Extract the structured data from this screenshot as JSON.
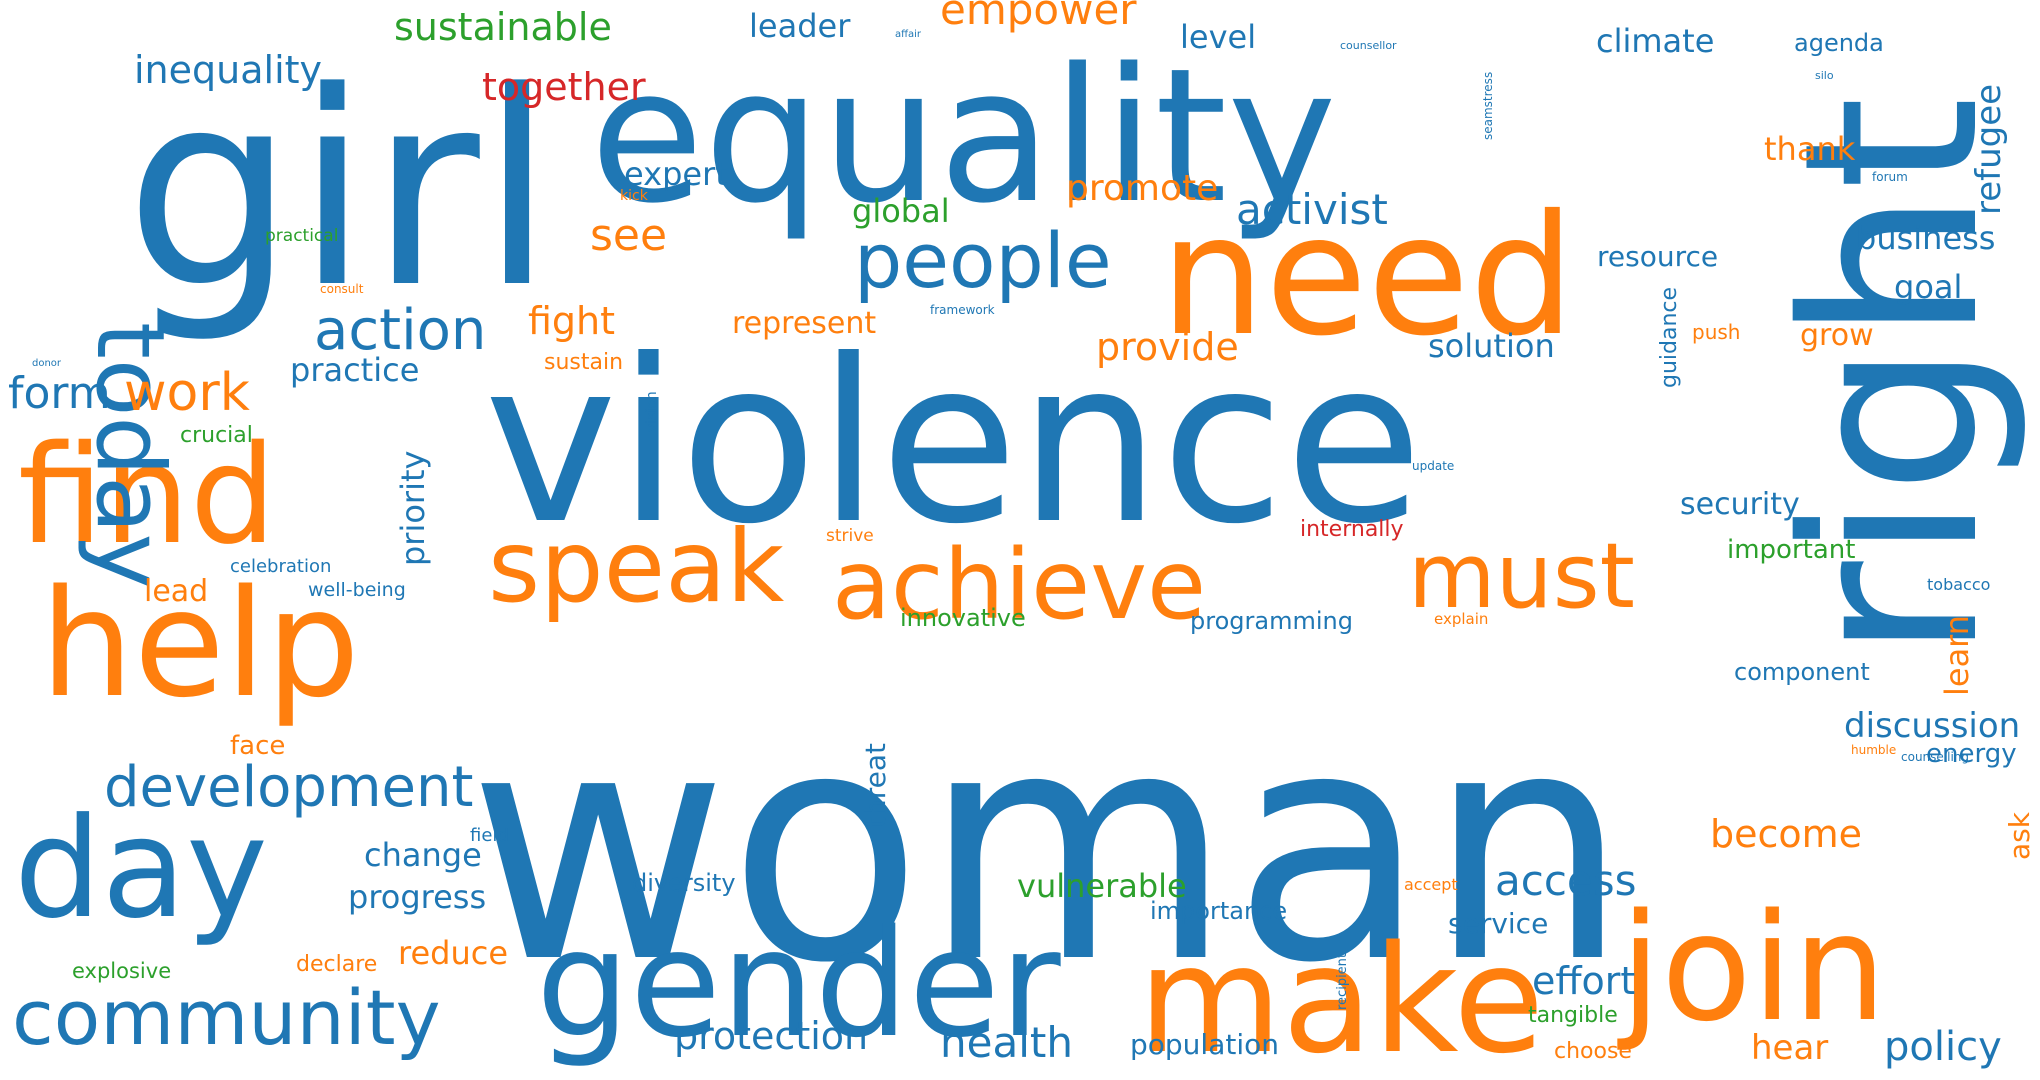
{
  "palette": {
    "blue": "#1f77b4",
    "orange": "#ff7f0e",
    "green": "#2ca02c",
    "red": "#d62728"
  },
  "words": [
    {
      "text": "woman",
      "color": "blue"
    },
    {
      "text": "violence",
      "color": "blue"
    },
    {
      "text": "girl",
      "color": "blue"
    },
    {
      "text": "equality",
      "color": "blue"
    },
    {
      "text": "right",
      "color": "blue"
    },
    {
      "text": "need",
      "color": "orange"
    },
    {
      "text": "gender",
      "color": "blue"
    },
    {
      "text": "make",
      "color": "orange"
    },
    {
      "text": "join",
      "color": "orange"
    },
    {
      "text": "help",
      "color": "orange"
    },
    {
      "text": "find",
      "color": "orange"
    },
    {
      "text": "day",
      "color": "blue"
    },
    {
      "text": "today",
      "color": "blue"
    },
    {
      "text": "speak",
      "color": "orange"
    },
    {
      "text": "achieve",
      "color": "orange"
    },
    {
      "text": "must",
      "color": "orange"
    },
    {
      "text": "people",
      "color": "blue"
    },
    {
      "text": "community",
      "color": "blue"
    },
    {
      "text": "development",
      "color": "blue"
    },
    {
      "text": "action",
      "color": "blue"
    },
    {
      "text": "work",
      "color": "orange"
    },
    {
      "text": "form",
      "color": "blue"
    },
    {
      "text": "access",
      "color": "blue"
    },
    {
      "text": "sustainable",
      "color": "green"
    },
    {
      "text": "inequality",
      "color": "blue"
    },
    {
      "text": "together",
      "color": "red"
    },
    {
      "text": "leader",
      "color": "blue"
    },
    {
      "text": "affair",
      "color": "blue"
    },
    {
      "text": "empower",
      "color": "orange"
    },
    {
      "text": "level",
      "color": "blue"
    },
    {
      "text": "counsellor",
      "color": "blue"
    },
    {
      "text": "seamstress",
      "color": "blue"
    },
    {
      "text": "climate",
      "color": "blue"
    },
    {
      "text": "agenda",
      "color": "blue"
    },
    {
      "text": "silo",
      "color": "blue"
    },
    {
      "text": "refugee",
      "color": "blue"
    },
    {
      "text": "thank",
      "color": "orange"
    },
    {
      "text": "forum",
      "color": "blue"
    },
    {
      "text": "expert",
      "color": "blue"
    },
    {
      "text": "kick",
      "color": "orange"
    },
    {
      "text": "promote",
      "color": "orange"
    },
    {
      "text": "activist",
      "color": "blue"
    },
    {
      "text": "global",
      "color": "green"
    },
    {
      "text": "see",
      "color": "orange"
    },
    {
      "text": "practical",
      "color": "green"
    },
    {
      "text": "business",
      "color": "blue"
    },
    {
      "text": "resource",
      "color": "blue"
    },
    {
      "text": "goal",
      "color": "blue"
    },
    {
      "text": "consult",
      "color": "orange"
    },
    {
      "text": "fight",
      "color": "orange"
    },
    {
      "text": "represent",
      "color": "orange"
    },
    {
      "text": "framework",
      "color": "blue"
    },
    {
      "text": "guidance",
      "color": "blue"
    },
    {
      "text": "push",
      "color": "orange"
    },
    {
      "text": "grow",
      "color": "orange"
    },
    {
      "text": "provide",
      "color": "orange"
    },
    {
      "text": "solution",
      "color": "blue"
    },
    {
      "text": "sustain",
      "color": "orange"
    },
    {
      "text": "donor",
      "color": "blue"
    },
    {
      "text": "practice",
      "color": "blue"
    },
    {
      "text": "vision",
      "color": "blue"
    },
    {
      "text": "crucial",
      "color": "green"
    },
    {
      "text": "priority",
      "color": "blue"
    },
    {
      "text": "update",
      "color": "blue"
    },
    {
      "text": "security",
      "color": "blue"
    },
    {
      "text": "strive",
      "color": "orange"
    },
    {
      "text": "internally",
      "color": "red"
    },
    {
      "text": "important",
      "color": "green"
    },
    {
      "text": "celebration",
      "color": "blue"
    },
    {
      "text": "lead",
      "color": "orange"
    },
    {
      "text": "well-being",
      "color": "blue"
    },
    {
      "text": "innovative",
      "color": "green"
    },
    {
      "text": "programming",
      "color": "blue"
    },
    {
      "text": "explain",
      "color": "orange"
    },
    {
      "text": "tobacco",
      "color": "blue"
    },
    {
      "text": "learn",
      "color": "orange"
    },
    {
      "text": "component",
      "color": "blue"
    },
    {
      "text": "discussion",
      "color": "blue"
    },
    {
      "text": "energy",
      "color": "blue"
    },
    {
      "text": "humble",
      "color": "orange"
    },
    {
      "text": "counselling",
      "color": "blue"
    },
    {
      "text": "face",
      "color": "orange"
    },
    {
      "text": "threat",
      "color": "blue"
    },
    {
      "text": "field",
      "color": "blue"
    },
    {
      "text": "change",
      "color": "blue"
    },
    {
      "text": "become",
      "color": "orange"
    },
    {
      "text": "ask",
      "color": "orange"
    },
    {
      "text": "progress",
      "color": "blue"
    },
    {
      "text": "diversity",
      "color": "blue"
    },
    {
      "text": "vulnerable",
      "color": "green"
    },
    {
      "text": "accept",
      "color": "orange"
    },
    {
      "text": "importance",
      "color": "blue"
    },
    {
      "text": "service",
      "color": "blue"
    },
    {
      "text": "explosive",
      "color": "green"
    },
    {
      "text": "declare",
      "color": "orange"
    },
    {
      "text": "reduce",
      "color": "orange"
    },
    {
      "text": "recipient",
      "color": "blue"
    },
    {
      "text": "effort",
      "color": "blue"
    },
    {
      "text": "tangible",
      "color": "green"
    },
    {
      "text": "protection",
      "color": "blue"
    },
    {
      "text": "health",
      "color": "blue"
    },
    {
      "text": "population",
      "color": "blue"
    },
    {
      "text": "choose",
      "color": "orange"
    },
    {
      "text": "hear",
      "color": "orange"
    },
    {
      "text": "policy",
      "color": "blue"
    }
  ]
}
